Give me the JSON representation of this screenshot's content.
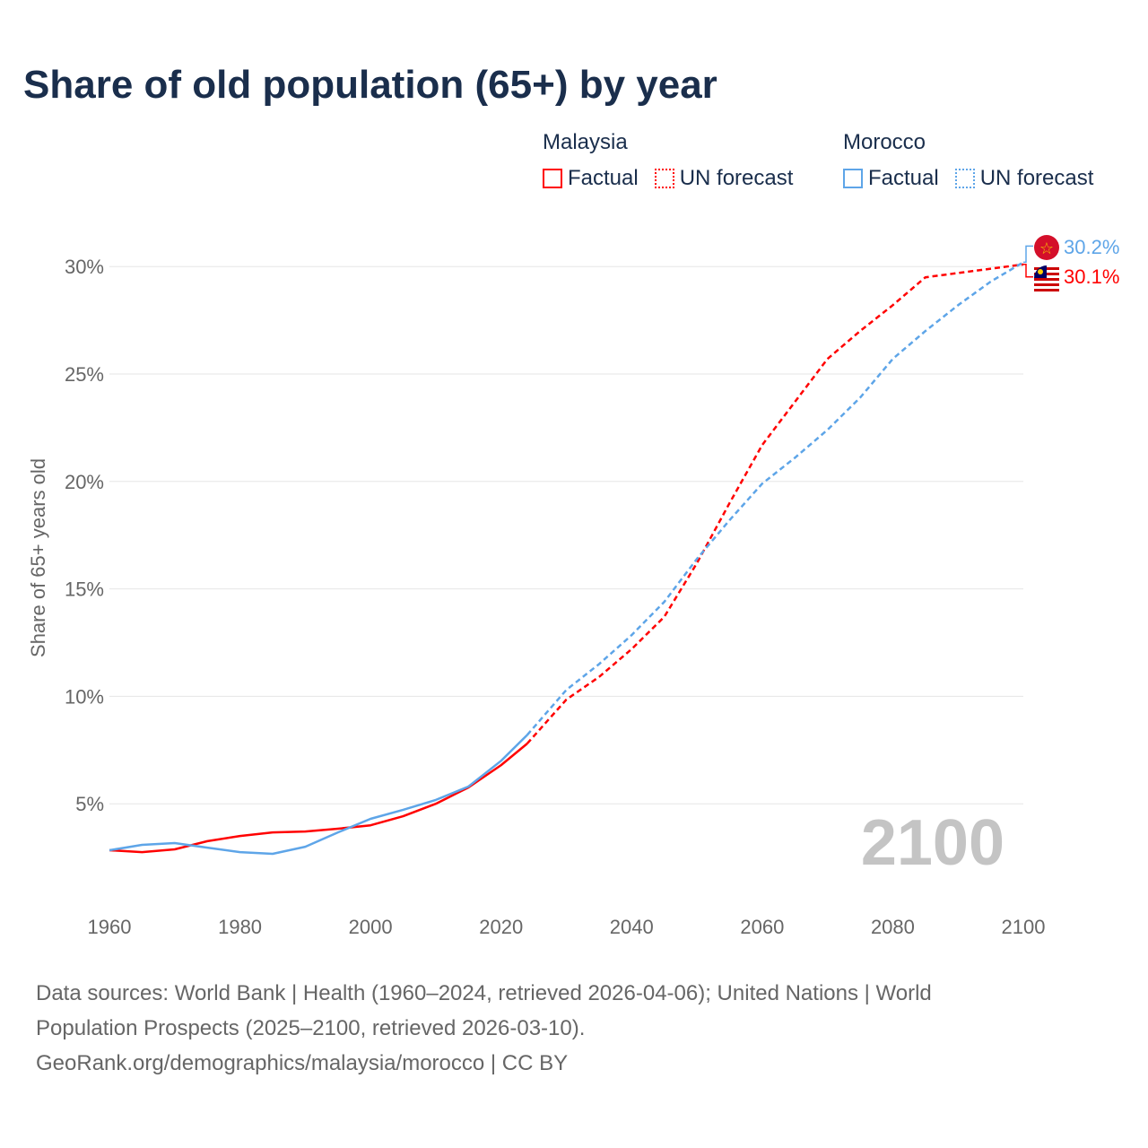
{
  "chart_data": {
    "type": "line",
    "title": "Share of old population (65+) by year",
    "ylabel": "Share of 65+ years old",
    "xlabel": "",
    "xlim": [
      1960,
      2100
    ],
    "ylim": [
      0,
      32
    ],
    "x_ticks": [
      "1960",
      "1980",
      "2000",
      "2020",
      "2040",
      "2060",
      "2080",
      "2100"
    ],
    "y_ticks": [
      "5%",
      "10%",
      "15%",
      "20%",
      "25%",
      "30%"
    ],
    "grid": true,
    "year_watermark": "2100",
    "legend": {
      "groups": [
        {
          "name": "Malaysia",
          "items": [
            "Factual",
            "UN forecast"
          ]
        },
        {
          "name": "Morocco",
          "items": [
            "Factual",
            "UN forecast"
          ]
        }
      ],
      "placement": "top-right"
    },
    "series": [
      {
        "name": "Malaysia",
        "color": "#ff0000",
        "factual": {
          "x": [
            1960,
            1965,
            1970,
            1975,
            1980,
            1985,
            1990,
            1995,
            2000,
            2005,
            2010,
            2015,
            2020,
            2024
          ],
          "y": [
            2.84,
            2.75,
            2.88,
            3.26,
            3.5,
            3.67,
            3.71,
            3.84,
            4.0,
            4.42,
            5.0,
            5.76,
            6.8,
            7.8
          ]
        },
        "forecast": {
          "x": [
            2024,
            2030,
            2035,
            2040,
            2045,
            2050,
            2055,
            2060,
            2065,
            2070,
            2075,
            2080,
            2085,
            2090,
            2095,
            2100
          ],
          "y": [
            7.8,
            9.85,
            10.9,
            12.2,
            13.7,
            16.2,
            19.0,
            21.7,
            23.7,
            25.7,
            27.0,
            28.2,
            29.5,
            29.7,
            29.9,
            30.1
          ]
        },
        "end_label": "30.1%"
      },
      {
        "name": "Morocco",
        "color": "#5ea5e8",
        "factual": {
          "x": [
            1960,
            1965,
            1970,
            1975,
            1980,
            1985,
            1990,
            1995,
            2000,
            2005,
            2010,
            2015,
            2020,
            2024
          ],
          "y": [
            2.84,
            3.09,
            3.17,
            2.96,
            2.75,
            2.67,
            3.0,
            3.67,
            4.3,
            4.72,
            5.18,
            5.8,
            7.0,
            8.2
          ]
        },
        "forecast": {
          "x": [
            2024,
            2030,
            2035,
            2040,
            2045,
            2050,
            2055,
            2060,
            2065,
            2070,
            2075,
            2080,
            2085,
            2090,
            2095,
            2100
          ],
          "y": [
            8.2,
            10.3,
            11.5,
            12.85,
            14.4,
            16.4,
            18.2,
            19.9,
            21.1,
            22.4,
            23.9,
            25.7,
            27.0,
            28.2,
            29.3,
            30.2
          ]
        },
        "end_label": "30.2%"
      }
    ]
  },
  "footer": {
    "line1": "Data sources: World Bank | Health (1960–2024, retrieved 2026-04-06); United Nations | World",
    "line2": "Population Prospects (2025–2100, retrieved 2026-03-10).",
    "line3": "GeoRank.org/demographics/malaysia/morocco | CC BY"
  }
}
